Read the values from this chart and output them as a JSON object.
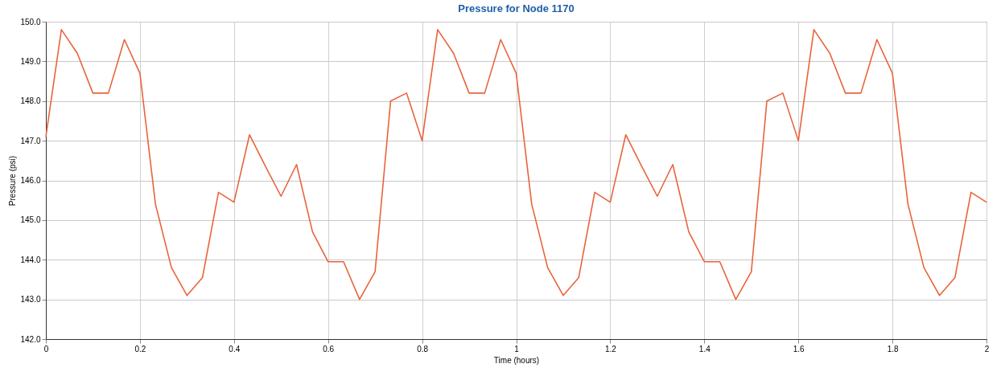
{
  "chart_data": {
    "type": "line",
    "title": "Pressure for Node 1170",
    "xlabel": "Time (hours)",
    "ylabel": "Pressure (psi)",
    "x": [
      0,
      0.033,
      0.067,
      0.1,
      0.133,
      0.167,
      0.2,
      0.233,
      0.267,
      0.3,
      0.333,
      0.367,
      0.4,
      0.433,
      0.467,
      0.5,
      0.533,
      0.567,
      0.6,
      0.633,
      0.667,
      0.7,
      0.733,
      0.767,
      0.8,
      0.833,
      0.867,
      0.9,
      0.933,
      0.967,
      1,
      1.033,
      1.067,
      1.1,
      1.133,
      1.167,
      1.2,
      1.233,
      1.267,
      1.3,
      1.333,
      1.367,
      1.4,
      1.433,
      1.467,
      1.5,
      1.533,
      1.567,
      1.6,
      1.633,
      1.667,
      1.7,
      1.733,
      1.767,
      1.8,
      1.833,
      1.867,
      1.9,
      1.933,
      1.967,
      2
    ],
    "series": [
      {
        "color": "#e8643c",
        "values": [
          147.1,
          149.8,
          149.2,
          148.2,
          148.2,
          149.55,
          148.7,
          145.4,
          143.8,
          143.1,
          143.55,
          145.7,
          145.45,
          147.15,
          146.35,
          145.6,
          146.4,
          144.7,
          143.95,
          143.95,
          143.0,
          143.7,
          148.0,
          148.2,
          147.0,
          149.8,
          149.2,
          148.2,
          148.2,
          149.55,
          148.7,
          145.4,
          143.8,
          143.1,
          143.55,
          145.7,
          145.45,
          147.15,
          146.35,
          145.6,
          146.4,
          144.7,
          143.95,
          143.95,
          143.0,
          143.7,
          148.0,
          148.2,
          147.0,
          149.8,
          149.2,
          148.2,
          148.2,
          149.55,
          148.7,
          145.4,
          143.8,
          143.1,
          143.55,
          145.7,
          145.45
        ]
      }
    ],
    "xlim": [
      0,
      2
    ],
    "xticks": [
      0,
      0.2,
      0.4,
      0.6,
      0.8,
      1,
      1.2,
      1.4,
      1.6,
      1.8,
      2
    ],
    "ylim": [
      142,
      150
    ],
    "yticks": [
      {
        "value": 142,
        "label": "142.0"
      },
      {
        "value": 143,
        "label": "143.0"
      },
      {
        "value": 144,
        "label": "144.0"
      },
      {
        "value": 145,
        "label": "145.0"
      },
      {
        "value": 146,
        "label": "146.0"
      },
      {
        "value": 147,
        "label": "147.0"
      },
      {
        "value": 148,
        "label": "148.0"
      },
      {
        "value": 149,
        "label": "149.0"
      },
      {
        "value": 150,
        "label": "150.0"
      }
    ],
    "grid": true,
    "marker": "none",
    "line_style": "solid"
  }
}
